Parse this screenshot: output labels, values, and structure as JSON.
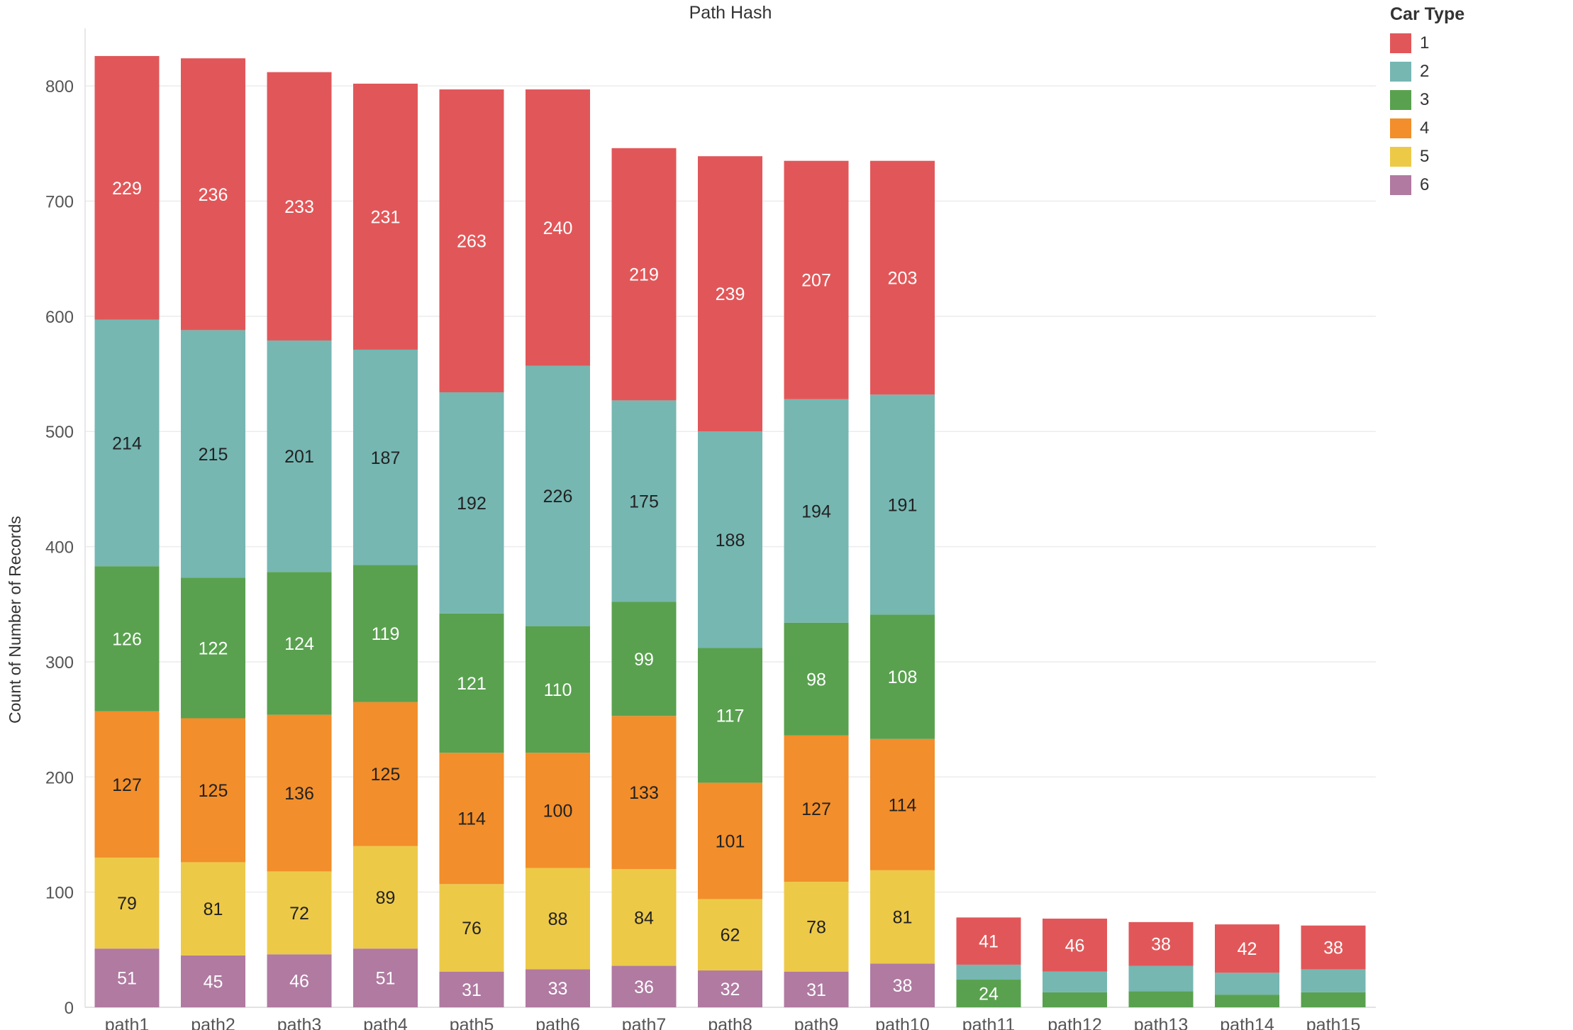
{
  "chart_data": {
    "type": "bar",
    "stacked": true,
    "title": "Path Hash",
    "xlabel": "",
    "ylabel": "Count of Number of Records",
    "ylim": [
      0,
      850
    ],
    "yticks": [
      0,
      100,
      200,
      300,
      400,
      500,
      600,
      700,
      800
    ],
    "grid": true,
    "legend": {
      "title": "Car Type",
      "position": "top-right"
    },
    "categories": [
      "path1",
      "path2",
      "path3",
      "path4",
      "path5",
      "path6",
      "path7",
      "path8",
      "path9",
      "path10",
      "path11",
      "path12",
      "path13",
      "path14",
      "path15"
    ],
    "series": [
      {
        "name": "6",
        "color": "#b07aa1",
        "values": [
          51,
          45,
          46,
          51,
          31,
          33,
          36,
          32,
          31,
          38,
          0,
          0,
          0,
          0,
          0
        ],
        "labels": [
          "51",
          "45",
          "46",
          "51",
          "31",
          "33",
          "36",
          "32",
          "31",
          "38",
          "",
          "",
          "",
          "",
          ""
        ],
        "label_color": "#ffffff"
      },
      {
        "name": "5",
        "color": "#edc948",
        "values": [
          79,
          81,
          72,
          89,
          76,
          88,
          84,
          62,
          78,
          81,
          0,
          0,
          0,
          0,
          0
        ],
        "labels": [
          "79",
          "81",
          "72",
          "89",
          "76",
          "88",
          "84",
          "62",
          "78",
          "81",
          "",
          "",
          "",
          "",
          ""
        ],
        "label_color": "#222222"
      },
      {
        "name": "4",
        "color": "#f28e2b",
        "values": [
          127,
          125,
          136,
          125,
          114,
          100,
          133,
          101,
          127,
          114,
          0,
          0,
          0,
          0,
          0
        ],
        "labels": [
          "127",
          "125",
          "136",
          "125",
          "114",
          "100",
          "133",
          "101",
          "127",
          "114",
          "",
          "",
          "",
          "",
          ""
        ],
        "label_color": "#222222"
      },
      {
        "name": "3",
        "color": "#59a14f",
        "values": [
          126,
          122,
          124,
          119,
          121,
          110,
          99,
          117,
          98,
          108,
          24,
          13,
          14,
          11,
          13
        ],
        "labels": [
          "126",
          "122",
          "124",
          "119",
          "121",
          "110",
          "99",
          "117",
          "98",
          "108",
          "24",
          "",
          "",
          "",
          ""
        ],
        "label_color": "#ffffff"
      },
      {
        "name": "2",
        "color": "#76b7b2",
        "values": [
          214,
          215,
          201,
          187,
          192,
          226,
          175,
          188,
          194,
          191,
          13,
          18,
          22,
          19,
          20
        ],
        "labels": [
          "214",
          "215",
          "201",
          "187",
          "192",
          "226",
          "175",
          "188",
          "194",
          "191",
          "",
          "",
          "",
          "",
          ""
        ],
        "label_color": "#222222"
      },
      {
        "name": "1",
        "color": "#e15759",
        "values": [
          229,
          236,
          233,
          231,
          263,
          240,
          219,
          239,
          207,
          203,
          41,
          46,
          38,
          42,
          38
        ],
        "labels": [
          "229",
          "236",
          "233",
          "231",
          "263",
          "240",
          "219",
          "239",
          "207",
          "203",
          "41",
          "46",
          "38",
          "42",
          "38"
        ],
        "label_color": "#ffffff"
      }
    ],
    "legend_order": [
      "1",
      "2",
      "3",
      "4",
      "5",
      "6"
    ]
  }
}
